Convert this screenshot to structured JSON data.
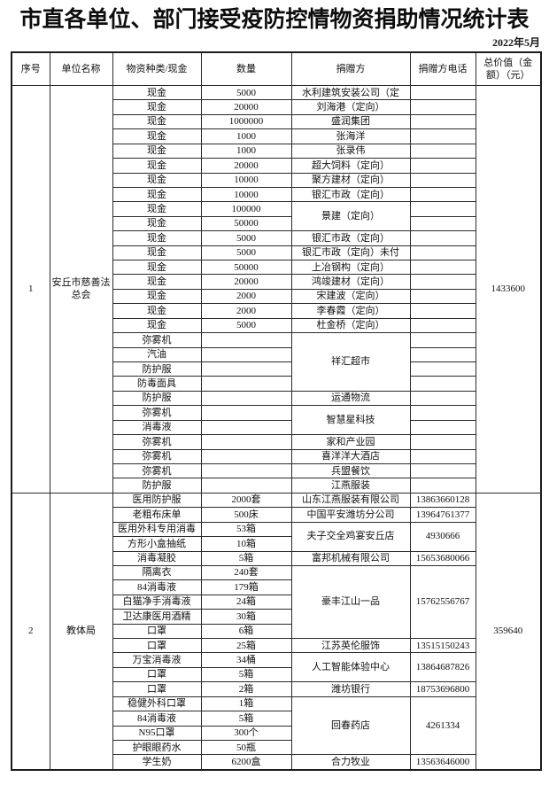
{
  "title": "市直各单位、部门接受疫防控情物资捐助情况统计表",
  "date": "2022年5月",
  "colors": {
    "background": "#ffffff",
    "border": "#2a2a2a",
    "text": "#111111"
  },
  "table": {
    "headers": [
      "序号",
      "单位名称",
      "物资种类/现金",
      "数量",
      "捐赠方",
      "捐赠方电话",
      "总价值（金额）（元）"
    ],
    "sections": [
      {
        "index": "1",
        "unit": "安丘市慈善法总会",
        "total": "1433600",
        "rows": [
          {
            "item": "现金",
            "qty": "5000",
            "donor": "水利建筑安装公司（定",
            "dspan": 1,
            "phone": "",
            "pspan": 1
          },
          {
            "item": "现金",
            "qty": "20000",
            "donor": "刘海港（定向）",
            "dspan": 1,
            "phone": "",
            "pspan": 1
          },
          {
            "item": "现金",
            "qty": "1000000",
            "donor": "盛润集团",
            "dspan": 1,
            "phone": "",
            "pspan": 1
          },
          {
            "item": "现金",
            "qty": "1000",
            "donor": "张海洋",
            "dspan": 1,
            "phone": "",
            "pspan": 1
          },
          {
            "item": "现金",
            "qty": "1000",
            "donor": "张录伟",
            "dspan": 1,
            "phone": "",
            "pspan": 1
          },
          {
            "item": "现金",
            "qty": "20000",
            "donor": "超大饲料（定向）",
            "dspan": 1,
            "phone": "",
            "pspan": 1
          },
          {
            "item": "现金",
            "qty": "10000",
            "donor": "聚方建材（定向）",
            "dspan": 1,
            "phone": "",
            "pspan": 1
          },
          {
            "item": "现金",
            "qty": "10000",
            "donor": "银汇市政（定向）",
            "dspan": 1,
            "phone": "",
            "pspan": 1
          },
          {
            "item": "现金",
            "qty": "100000",
            "donor": "景建（定向）",
            "dspan": 2,
            "phone": "",
            "pspan": 1
          },
          {
            "item": "现金",
            "qty": "50000",
            "phone": "",
            "pspan": 1
          },
          {
            "item": "现金",
            "qty": "5000",
            "donor": "银汇市政（定向）",
            "dspan": 1,
            "phone": "",
            "pspan": 1
          },
          {
            "item": "现金",
            "qty": "5000",
            "donor": "银汇市政（定向）未付",
            "dspan": 1,
            "phone": "",
            "pspan": 1
          },
          {
            "item": "现金",
            "qty": "50000",
            "donor": "上冶钢构（定向）",
            "dspan": 1,
            "phone": "",
            "pspan": 1
          },
          {
            "item": "现金",
            "qty": "20000",
            "donor": "鸿竣建材（定向）",
            "dspan": 1,
            "phone": "",
            "pspan": 1
          },
          {
            "item": "现金",
            "qty": "2000",
            "donor": "宋建波（定向）",
            "dspan": 1,
            "phone": "",
            "pspan": 1
          },
          {
            "item": "现金",
            "qty": "2000",
            "donor": "李春霞（定向）",
            "dspan": 1,
            "phone": "",
            "pspan": 1
          },
          {
            "item": "现金",
            "qty": "5000",
            "donor": "杜金桥（定向）",
            "dspan": 1,
            "phone": "",
            "pspan": 1
          },
          {
            "item": "弥雾机",
            "qty": "",
            "donor": "祥汇超市",
            "dspan": 4,
            "phone": "",
            "pspan": 1
          },
          {
            "item": "汽油",
            "qty": "",
            "phone": "",
            "pspan": 1
          },
          {
            "item": "防护服",
            "qty": "",
            "phone": "",
            "pspan": 1
          },
          {
            "item": "防毒面具",
            "qty": "",
            "phone": "",
            "pspan": 1
          },
          {
            "item": "防护服",
            "qty": "",
            "donor": "运通物流",
            "dspan": 1,
            "phone": "",
            "pspan": 1
          },
          {
            "item": "弥雾机",
            "qty": "",
            "donor": "智慧星科技",
            "dspan": 2,
            "phone": "",
            "pspan": 1
          },
          {
            "item": "消毒液",
            "qty": "",
            "phone": "",
            "pspan": 1
          },
          {
            "item": "弥雾机",
            "qty": "",
            "donor": "家和产业园",
            "dspan": 1,
            "phone": "",
            "pspan": 1
          },
          {
            "item": "弥雾机",
            "qty": "",
            "donor": "喜洋洋大酒店",
            "dspan": 1,
            "phone": "",
            "pspan": 1
          },
          {
            "item": "弥雾机",
            "qty": "",
            "donor": "兵盟餐饮",
            "dspan": 1,
            "phone": "",
            "pspan": 1
          },
          {
            "item": "防护服",
            "qty": "",
            "donor": "江燕服装",
            "dspan": 1,
            "phone": "",
            "pspan": 1
          }
        ]
      },
      {
        "index": "2",
        "unit": "教体局",
        "total": "359640",
        "rows": [
          {
            "item": "医用防护服",
            "qty": "2000套",
            "donor": "山东江燕服装有限公司",
            "dspan": 1,
            "phone": "13863660128",
            "pspan": 1
          },
          {
            "item": "老粗布床单",
            "qty": "500床",
            "donor": "中国平安潍坊分公司",
            "dspan": 1,
            "phone": "13964761377",
            "pspan": 1
          },
          {
            "item": "医用外科专用消毒",
            "qty": "53箱",
            "donor": "夫子交全鸡宴安丘店",
            "dspan": 2,
            "phone": "4930666",
            "pspan": 2
          },
          {
            "item": "方形小盒抽纸",
            "qty": "10箱"
          },
          {
            "item": "消毒凝胶",
            "qty": "5箱",
            "donor": "富邦机械有限公司",
            "dspan": 1,
            "phone": "15653680066",
            "pspan": 1
          },
          {
            "item": "隔离衣",
            "qty": "240套",
            "donor": "豪丰江山一品",
            "dspan": 5,
            "phone": "15762556767",
            "pspan": 5
          },
          {
            "item": "84消毒液",
            "qty": "179箱"
          },
          {
            "item": "白猫净手消毒液",
            "qty": "24箱"
          },
          {
            "item": "卫达康医用酒精",
            "qty": "30箱"
          },
          {
            "item": "口罩",
            "qty": "6箱"
          },
          {
            "item": "口罩",
            "qty": "25箱",
            "donor": "江苏英伦服饰",
            "dspan": 1,
            "phone": "13515150243",
            "pspan": 1
          },
          {
            "item": "万宝消毒液",
            "qty": "34桶",
            "donor": "人工智能体验中心",
            "dspan": 2,
            "phone": "13864687826",
            "pspan": 2
          },
          {
            "item": "口罩",
            "qty": "5箱"
          },
          {
            "item": "口罩",
            "qty": "2箱",
            "donor": "潍坊银行",
            "dspan": 1,
            "phone": "18753696800",
            "pspan": 1
          },
          {
            "item": "稳健外科口罩",
            "qty": "1箱",
            "donor": "回春药店",
            "dspan": 4,
            "phone": "4261334",
            "pspan": 4
          },
          {
            "item": "84消毒液",
            "qty": "5箱"
          },
          {
            "item": "N95口罩",
            "qty": "300个"
          },
          {
            "item": "护眼眼药水",
            "qty": "50瓶"
          },
          {
            "item": "学生奶",
            "qty": "6200盒",
            "donor": "合力牧业",
            "dspan": 1,
            "phone": "13563646000",
            "pspan": 1
          }
        ]
      }
    ]
  }
}
